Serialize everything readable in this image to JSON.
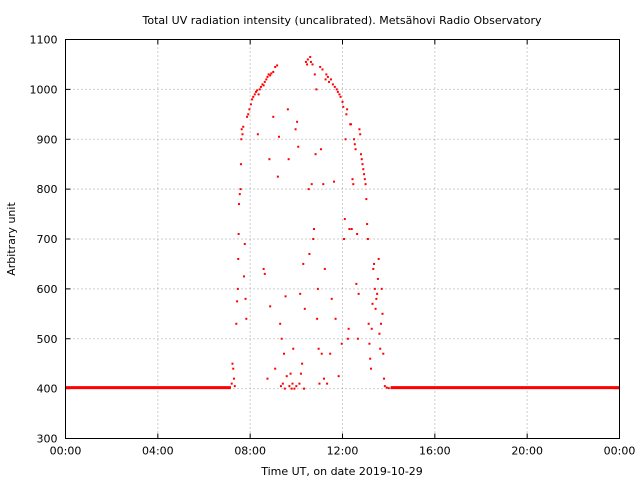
{
  "colors": {
    "series": "#ff0000",
    "grid": "#a0a0a0",
    "axis": "#000000"
  },
  "chart_data": {
    "type": "scatter",
    "title": "Total UV radiation intensity (uncalibrated). Metsähovi Radio Observatory",
    "xlabel": "Time UT, on date 2019-10-29",
    "ylabel": "Arbitrary unit",
    "xlim": [
      "00:00",
      "24:00"
    ],
    "ylim": [
      300,
      1100
    ],
    "x_ticks": [
      "00:00",
      "04:00",
      "08:00",
      "12:00",
      "16:00",
      "20:00",
      "00:00"
    ],
    "y_ticks": [
      "300",
      "400",
      "500",
      "600",
      "700",
      "800",
      "900",
      "1000",
      "1100"
    ],
    "grid": true,
    "legend": "none",
    "baseline_segments": [
      {
        "from": "00:00",
        "to": "07:10",
        "value": 402
      },
      {
        "from": "14:05",
        "to": "24:00",
        "value": 402
      }
    ],
    "points": [
      [
        "07:12",
        410
      ],
      [
        "07:14",
        450
      ],
      [
        "07:16",
        440
      ],
      [
        "07:18",
        420
      ],
      [
        "07:20",
        405
      ],
      [
        "07:24",
        530
      ],
      [
        "07:26",
        575
      ],
      [
        "07:28",
        600
      ],
      [
        "07:29",
        660
      ],
      [
        "07:30",
        710
      ],
      [
        "07:31",
        770
      ],
      [
        "07:33",
        790
      ],
      [
        "07:35",
        800
      ],
      [
        "07:36",
        850
      ],
      [
        "07:37",
        900
      ],
      [
        "07:38",
        920
      ],
      [
        "07:40",
        910
      ],
      [
        "07:42",
        925
      ],
      [
        "07:44",
        625
      ],
      [
        "07:46",
        690
      ],
      [
        "07:48",
        580
      ],
      [
        "07:50",
        540
      ],
      [
        "07:52",
        945
      ],
      [
        "07:55",
        950
      ],
      [
        "07:58",
        960
      ],
      [
        "08:02",
        970
      ],
      [
        "08:05",
        980
      ],
      [
        "08:08",
        985
      ],
      [
        "08:12",
        990
      ],
      [
        "08:15",
        995
      ],
      [
        "08:18",
        998
      ],
      [
        "08:22",
        990
      ],
      [
        "08:25",
        1000
      ],
      [
        "08:28",
        1005
      ],
      [
        "08:32",
        1010
      ],
      [
        "08:35",
        1008
      ],
      [
        "08:38",
        1015
      ],
      [
        "08:42",
        1020
      ],
      [
        "08:45",
        1025
      ],
      [
        "08:48",
        1030
      ],
      [
        "08:52",
        1028
      ],
      [
        "08:55",
        1032
      ],
      [
        "09:00",
        1035
      ],
      [
        "09:05",
        1045
      ],
      [
        "09:10",
        1048
      ],
      [
        "08:20",
        910
      ],
      [
        "08:35",
        640
      ],
      [
        "08:38",
        630
      ],
      [
        "08:45",
        420
      ],
      [
        "08:50",
        860
      ],
      [
        "08:52",
        565
      ],
      [
        "09:00",
        945
      ],
      [
        "09:05",
        440
      ],
      [
        "09:12",
        825
      ],
      [
        "09:15",
        905
      ],
      [
        "09:18",
        530
      ],
      [
        "09:20",
        405
      ],
      [
        "09:22",
        500
      ],
      [
        "09:25",
        410
      ],
      [
        "09:28",
        470
      ],
      [
        "09:30",
        400
      ],
      [
        "09:32",
        585
      ],
      [
        "09:35",
        425
      ],
      [
        "09:38",
        960
      ],
      [
        "09:40",
        860
      ],
      [
        "09:42",
        405
      ],
      [
        "09:45",
        430
      ],
      [
        "09:48",
        400
      ],
      [
        "09:50",
        410
      ],
      [
        "09:52",
        480
      ],
      [
        "09:55",
        400
      ],
      [
        "09:58",
        920
      ],
      [
        "10:00",
        405
      ],
      [
        "10:02",
        935
      ],
      [
        "10:05",
        885
      ],
      [
        "10:08",
        410
      ],
      [
        "10:10",
        590
      ],
      [
        "10:12",
        430
      ],
      [
        "10:15",
        450
      ],
      [
        "10:18",
        650
      ],
      [
        "10:20",
        400
      ],
      [
        "10:22",
        560
      ],
      [
        "10:25",
        1055
      ],
      [
        "10:28",
        1050
      ],
      [
        "10:30",
        1060
      ],
      [
        "10:32",
        800
      ],
      [
        "10:34",
        670
      ],
      [
        "10:36",
        1065
      ],
      [
        "10:38",
        1055
      ],
      [
        "10:40",
        810
      ],
      [
        "10:42",
        1050
      ],
      [
        "10:44",
        700
      ],
      [
        "10:46",
        720
      ],
      [
        "10:48",
        1030
      ],
      [
        "10:50",
        870
      ],
      [
        "10:52",
        1000
      ],
      [
        "10:54",
        540
      ],
      [
        "10:56",
        600
      ],
      [
        "10:58",
        480
      ],
      [
        "11:00",
        410
      ],
      [
        "11:02",
        1045
      ],
      [
        "11:04",
        880
      ],
      [
        "11:06",
        470
      ],
      [
        "11:08",
        1040
      ],
      [
        "11:10",
        810
      ],
      [
        "11:12",
        420
      ],
      [
        "11:14",
        640
      ],
      [
        "11:16",
        1020
      ],
      [
        "11:18",
        1030
      ],
      [
        "11:20",
        410
      ],
      [
        "11:22",
        1025
      ],
      [
        "11:25",
        1015
      ],
      [
        "11:28",
        470
      ],
      [
        "11:30",
        1020
      ],
      [
        "11:32",
        580
      ],
      [
        "11:35",
        1010
      ],
      [
        "11:38",
        815
      ],
      [
        "11:40",
        1005
      ],
      [
        "11:42",
        540
      ],
      [
        "11:45",
        1000
      ],
      [
        "11:48",
        995
      ],
      [
        "11:50",
        425
      ],
      [
        "11:52",
        990
      ],
      [
        "11:55",
        985
      ],
      [
        "11:58",
        490
      ],
      [
        "12:00",
        975
      ],
      [
        "12:02",
        965
      ],
      [
        "12:04",
        700
      ],
      [
        "12:06",
        740
      ],
      [
        "12:08",
        900
      ],
      [
        "12:10",
        950
      ],
      [
        "12:12",
        960
      ],
      [
        "12:14",
        500
      ],
      [
        "12:16",
        520
      ],
      [
        "12:18",
        720
      ],
      [
        "12:20",
        930
      ],
      [
        "12:22",
        930
      ],
      [
        "12:24",
        720
      ],
      [
        "12:26",
        820
      ],
      [
        "12:28",
        810
      ],
      [
        "12:30",
        900
      ],
      [
        "12:32",
        890
      ],
      [
        "12:34",
        880
      ],
      [
        "12:36",
        610
      ],
      [
        "12:38",
        710
      ],
      [
        "12:40",
        500
      ],
      [
        "12:42",
        590
      ],
      [
        "12:44",
        920
      ],
      [
        "12:46",
        910
      ],
      [
        "12:48",
        870
      ],
      [
        "12:50",
        860
      ],
      [
        "12:52",
        850
      ],
      [
        "12:54",
        840
      ],
      [
        "12:56",
        830
      ],
      [
        "12:58",
        820
      ],
      [
        "13:00",
        810
      ],
      [
        "13:02",
        780
      ],
      [
        "13:04",
        730
      ],
      [
        "13:06",
        700
      ],
      [
        "13:08",
        530
      ],
      [
        "13:10",
        490
      ],
      [
        "13:12",
        460
      ],
      [
        "13:14",
        440
      ],
      [
        "13:16",
        520
      ],
      [
        "13:18",
        570
      ],
      [
        "13:20",
        640
      ],
      [
        "13:22",
        650
      ],
      [
        "13:24",
        600
      ],
      [
        "13:26",
        560
      ],
      [
        "13:28",
        580
      ],
      [
        "13:30",
        590
      ],
      [
        "13:32",
        620
      ],
      [
        "13:34",
        660
      ],
      [
        "13:36",
        510
      ],
      [
        "13:38",
        480
      ],
      [
        "13:40",
        530
      ],
      [
        "13:42",
        600
      ],
      [
        "13:44",
        550
      ],
      [
        "13:46",
        470
      ],
      [
        "13:48",
        420
      ],
      [
        "13:50",
        405
      ],
      [
        "13:55",
        402
      ],
      [
        "14:00",
        401
      ]
    ]
  }
}
